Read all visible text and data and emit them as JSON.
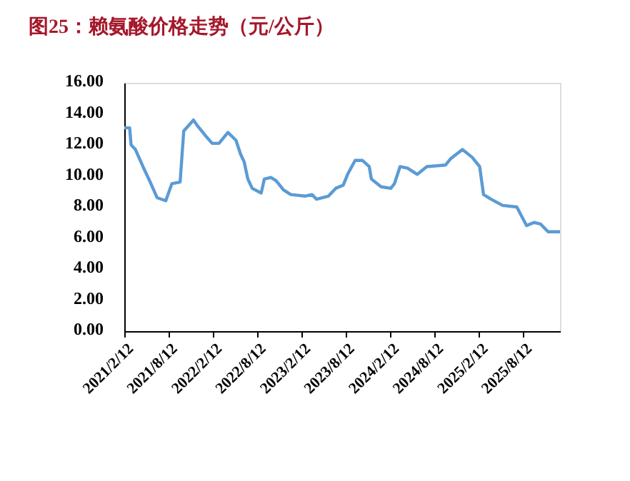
{
  "chart_data": {
    "type": "line",
    "title": "图25：赖氨酸价格走势（元/公斤）",
    "x": [
      "2021-02-12",
      "2021-03-06",
      "2021-03-12",
      "2021-03-30",
      "2021-04-30",
      "2021-05-27",
      "2021-06-27",
      "2021-08-02",
      "2021-08-27",
      "2021-09-30",
      "2021-10-15",
      "2021-11-24",
      "2021-12-12",
      "2022-01-12",
      "2022-02-09",
      "2022-03-09",
      "2022-04-15",
      "2022-05-18",
      "2022-06-06",
      "2022-06-21",
      "2022-07-06",
      "2022-07-24",
      "2022-08-30",
      "2022-09-12",
      "2022-10-09",
      "2022-10-30",
      "2022-11-30",
      "2022-12-30",
      "2023-02-27",
      "2023-03-27",
      "2023-04-15",
      "2023-06-03",
      "2023-07-03",
      "2023-08-03",
      "2023-08-21",
      "2023-09-21",
      "2023-10-21",
      "2023-11-18",
      "2023-11-27",
      "2024-01-06",
      "2024-02-15",
      "2024-03-01",
      "2024-03-24",
      "2024-04-24",
      "2024-06-03",
      "2024-07-12",
      "2024-09-27",
      "2024-10-18",
      "2024-12-06",
      "2025-01-15",
      "2025-02-15",
      "2025-03-03",
      "2025-04-03",
      "2025-05-21",
      "2025-07-18",
      "2025-08-27",
      "2025-09-27",
      "2025-10-24",
      "2025-11-24",
      "2026-01-12"
    ],
    "series": [
      {
        "color": "#5b9bd5",
        "values": [
          13.1,
          13.1,
          12.0,
          11.7,
          10.6,
          9.7,
          8.6,
          8.4,
          9.5,
          9.6,
          12.9,
          13.6,
          13.2,
          12.6,
          12.1,
          12.1,
          12.8,
          12.3,
          11.4,
          10.9,
          9.8,
          9.2,
          8.9,
          9.8,
          9.9,
          9.7,
          9.1,
          8.8,
          8.7,
          8.8,
          8.5,
          8.7,
          9.2,
          9.4,
          10.1,
          11.0,
          11.0,
          10.6,
          9.8,
          9.3,
          9.2,
          9.5,
          10.6,
          10.5,
          10.1,
          10.6,
          10.7,
          11.1,
          11.7,
          11.2,
          10.6,
          8.8,
          8.5,
          8.1,
          8.0,
          6.8,
          7.0,
          6.9,
          6.4,
          6.4
        ]
      }
    ],
    "xlim": [
      "2021-02-12",
      "2026-01-12"
    ],
    "xticks": [
      {
        "value": "2021-02-12",
        "label": "2021/2/12"
      },
      {
        "value": "2021-08-12",
        "label": "2021/8/12"
      },
      {
        "value": "2022-02-12",
        "label": "2022/2/12"
      },
      {
        "value": "2022-08-12",
        "label": "2022/8/12"
      },
      {
        "value": "2023-02-12",
        "label": "2023/2/12"
      },
      {
        "value": "2023-08-12",
        "label": "2023/8/12"
      },
      {
        "value": "2024-02-12",
        "label": "2024/2/12"
      },
      {
        "value": "2024-08-12",
        "label": "2024/8/12"
      },
      {
        "value": "2025-02-12",
        "label": "2025/2/12"
      },
      {
        "value": "2025-08-12",
        "label": "2025/8/12"
      }
    ],
    "ylim": [
      0,
      16
    ],
    "yticks": [
      {
        "value": 0,
        "label": "0.00"
      },
      {
        "value": 2,
        "label": "2.00"
      },
      {
        "value": 4,
        "label": "4.00"
      },
      {
        "value": 6,
        "label": "6.00"
      },
      {
        "value": 8,
        "label": "8.00"
      },
      {
        "value": 10,
        "label": "10.00"
      },
      {
        "value": 12,
        "label": "12.00"
      },
      {
        "value": 14,
        "label": "14.00"
      },
      {
        "value": 16,
        "label": "16.00"
      }
    ],
    "grid": false
  }
}
